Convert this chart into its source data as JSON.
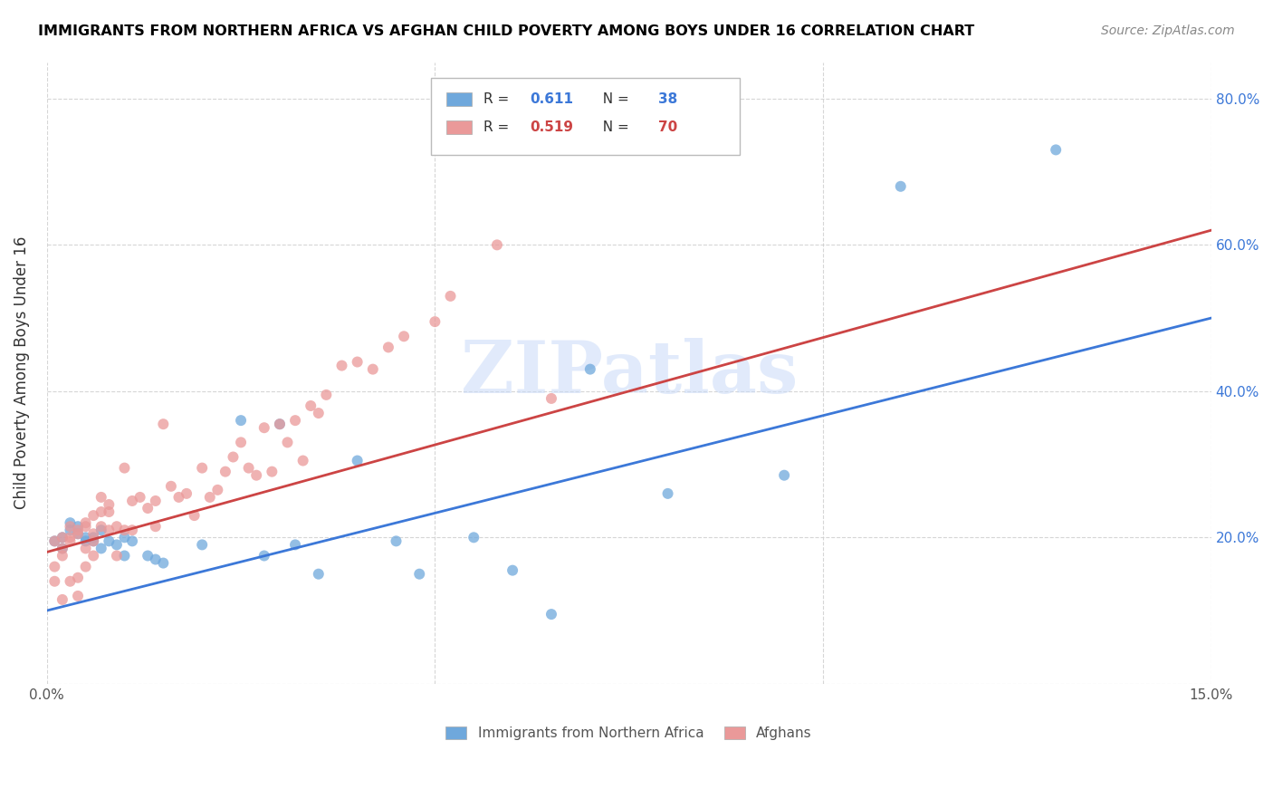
{
  "title": "IMMIGRANTS FROM NORTHERN AFRICA VS AFGHAN CHILD POVERTY AMONG BOYS UNDER 16 CORRELATION CHART",
  "source": "Source: ZipAtlas.com",
  "ylabel": "Child Poverty Among Boys Under 16",
  "xlim": [
    0.0,
    0.15
  ],
  "ylim": [
    0.0,
    0.85
  ],
  "blue_color": "#6fa8dc",
  "pink_color": "#ea9999",
  "blue_line_color": "#3c78d8",
  "pink_line_color": "#cc4444",
  "legend_blue_R": "0.611",
  "legend_blue_N": "38",
  "legend_pink_R": "0.519",
  "legend_pink_N": "70",
  "watermark": "ZIPatlas",
  "watermark_color": "#c9daf8",
  "blue_scatter_x": [
    0.001,
    0.002,
    0.002,
    0.003,
    0.003,
    0.004,
    0.004,
    0.005,
    0.005,
    0.006,
    0.006,
    0.007,
    0.007,
    0.008,
    0.009,
    0.01,
    0.01,
    0.011,
    0.013,
    0.014,
    0.015,
    0.02,
    0.025,
    0.028,
    0.03,
    0.032,
    0.035,
    0.04,
    0.045,
    0.048,
    0.055,
    0.06,
    0.065,
    0.07,
    0.08,
    0.095,
    0.11,
    0.13
  ],
  "blue_scatter_y": [
    0.195,
    0.2,
    0.185,
    0.21,
    0.22,
    0.205,
    0.215,
    0.195,
    0.2,
    0.195,
    0.2,
    0.185,
    0.21,
    0.195,
    0.19,
    0.2,
    0.175,
    0.195,
    0.175,
    0.17,
    0.165,
    0.19,
    0.36,
    0.175,
    0.355,
    0.19,
    0.15,
    0.305,
    0.195,
    0.15,
    0.2,
    0.155,
    0.095,
    0.43,
    0.26,
    0.285,
    0.68,
    0.73
  ],
  "pink_scatter_x": [
    0.001,
    0.001,
    0.001,
    0.002,
    0.002,
    0.002,
    0.002,
    0.003,
    0.003,
    0.003,
    0.003,
    0.004,
    0.004,
    0.004,
    0.004,
    0.005,
    0.005,
    0.005,
    0.005,
    0.006,
    0.006,
    0.006,
    0.006,
    0.007,
    0.007,
    0.007,
    0.008,
    0.008,
    0.008,
    0.009,
    0.009,
    0.01,
    0.01,
    0.011,
    0.011,
    0.012,
    0.013,
    0.014,
    0.014,
    0.015,
    0.016,
    0.017,
    0.018,
    0.019,
    0.02,
    0.021,
    0.022,
    0.023,
    0.024,
    0.025,
    0.026,
    0.027,
    0.028,
    0.029,
    0.03,
    0.031,
    0.032,
    0.033,
    0.034,
    0.035,
    0.036,
    0.038,
    0.04,
    0.042,
    0.044,
    0.046,
    0.05,
    0.052,
    0.058,
    0.065
  ],
  "pink_scatter_y": [
    0.14,
    0.16,
    0.195,
    0.2,
    0.185,
    0.175,
    0.115,
    0.215,
    0.2,
    0.195,
    0.14,
    0.21,
    0.205,
    0.12,
    0.145,
    0.22,
    0.215,
    0.185,
    0.16,
    0.205,
    0.23,
    0.175,
    0.195,
    0.235,
    0.255,
    0.215,
    0.245,
    0.235,
    0.21,
    0.215,
    0.175,
    0.21,
    0.295,
    0.21,
    0.25,
    0.255,
    0.24,
    0.25,
    0.215,
    0.355,
    0.27,
    0.255,
    0.26,
    0.23,
    0.295,
    0.255,
    0.265,
    0.29,
    0.31,
    0.33,
    0.295,
    0.285,
    0.35,
    0.29,
    0.355,
    0.33,
    0.36,
    0.305,
    0.38,
    0.37,
    0.395,
    0.435,
    0.44,
    0.43,
    0.46,
    0.475,
    0.495,
    0.53,
    0.6,
    0.39
  ],
  "blue_line_x": [
    0.0,
    0.15
  ],
  "blue_line_y": [
    0.1,
    0.5
  ],
  "pink_line_x": [
    0.0,
    0.15
  ],
  "pink_line_y": [
    0.18,
    0.62
  ],
  "legend_label_blue": "Immigrants from Northern Africa",
  "legend_label_pink": "Afghans"
}
